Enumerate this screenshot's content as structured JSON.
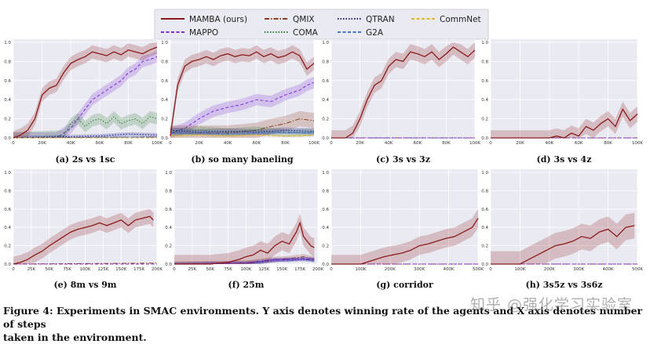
{
  "legend": [
    {
      "label": "MAMBA (ours)",
      "color": "#8b1a1a",
      "dash": "solid"
    },
    {
      "label": "QMIX",
      "color": "#8b3a1a",
      "dash": "dashdot"
    },
    {
      "label": "QTRAN",
      "color": "#1a1a8b",
      "dash": "dot"
    },
    {
      "label": "CommNet",
      "color": "#e3b52a",
      "dash": "dash"
    },
    {
      "label": "MAPPO",
      "color": "#7b2fd6",
      "dash": "dash"
    },
    {
      "label": "COMA",
      "color": "#2e7d32",
      "dash": "dot"
    },
    {
      "label": "G2A",
      "color": "#4a74c9",
      "dash": "dash"
    }
  ],
  "caption_line1": "Figure 4: Experiments in SMAC environments. Y axis denotes winning rate of the agents and X axis denotes number of steps",
  "caption_line2": "taken in the environment.",
  "watermark": "知乎 @强化学习实验室",
  "chart_data": [
    {
      "type": "line",
      "title": "(a) 2s vs 1sc",
      "ylim": [
        0,
        1.0
      ],
      "xticks": [
        "0",
        "20K",
        "40K",
        "60K",
        "80K",
        "100K"
      ],
      "xmax": 100,
      "yticks": [
        "0.0",
        "0.2",
        "0.4",
        "0.6",
        "0.8",
        "1.0"
      ],
      "series": [
        {
          "name": "MAMBA (ours)",
          "x": [
            0,
            5,
            10,
            15,
            20,
            25,
            30,
            35,
            40,
            45,
            50,
            55,
            60,
            65,
            70,
            75,
            80,
            85,
            90,
            95,
            100
          ],
          "y": [
            0,
            0.03,
            0.08,
            0.2,
            0.45,
            0.52,
            0.55,
            0.68,
            0.78,
            0.82,
            0.85,
            0.9,
            0.88,
            0.86,
            0.9,
            0.87,
            0.92,
            0.9,
            0.88,
            0.92,
            0.95
          ],
          "band": 0.07
        },
        {
          "name": "MAPPO",
          "x": [
            0,
            30,
            35,
            40,
            45,
            50,
            55,
            60,
            65,
            70,
            75,
            80,
            85,
            90,
            95,
            100
          ],
          "y": [
            0,
            0,
            0.05,
            0.1,
            0.2,
            0.3,
            0.4,
            0.45,
            0.5,
            0.55,
            0.6,
            0.68,
            0.72,
            0.8,
            0.82,
            0.85
          ],
          "band": 0.06
        },
        {
          "name": "COMA",
          "x": [
            0,
            35,
            40,
            45,
            50,
            55,
            60,
            65,
            70,
            75,
            80,
            85,
            90,
            95,
            100
          ],
          "y": [
            0,
            0.02,
            0.15,
            0.2,
            0.12,
            0.18,
            0.2,
            0.15,
            0.22,
            0.15,
            0.18,
            0.2,
            0.15,
            0.22,
            0.2
          ],
          "band": 0.06
        },
        {
          "name": "QMIX",
          "x": [
            0,
            100
          ],
          "y": [
            0,
            0.01
          ],
          "band": 0.005
        },
        {
          "name": "QTRAN",
          "x": [
            0,
            60,
            80,
            100
          ],
          "y": [
            0,
            0.02,
            0.04,
            0.03
          ],
          "band": 0.02
        },
        {
          "name": "G2A",
          "x": [
            0,
            100
          ],
          "y": [
            0,
            0.01
          ],
          "band": 0.005
        },
        {
          "name": "CommNet",
          "x": [
            0,
            100
          ],
          "y": [
            0,
            0
          ],
          "band": 0
        }
      ]
    },
    {
      "type": "line",
      "title": "(b) so many baneling",
      "ylim": [
        0,
        1.0
      ],
      "xticks": [
        "0",
        "20K",
        "40K",
        "60K",
        "80K",
        "100K"
      ],
      "xmax": 100,
      "yticks": [
        "0.0",
        "0.2",
        "0.4",
        "0.6",
        "0.8",
        "1.0"
      ],
      "series": [
        {
          "name": "MAMBA (ours)",
          "x": [
            0,
            5,
            10,
            15,
            20,
            25,
            30,
            35,
            40,
            45,
            50,
            55,
            60,
            65,
            70,
            75,
            80,
            85,
            90,
            95,
            100
          ],
          "y": [
            0.02,
            0.55,
            0.75,
            0.8,
            0.82,
            0.85,
            0.82,
            0.86,
            0.88,
            0.85,
            0.87,
            0.86,
            0.9,
            0.85,
            0.88,
            0.84,
            0.86,
            0.9,
            0.86,
            0.72,
            0.78
          ],
          "band": 0.07
        },
        {
          "name": "MAPPO",
          "x": [
            0,
            10,
            20,
            30,
            40,
            50,
            60,
            70,
            80,
            90,
            95,
            100
          ],
          "y": [
            0.05,
            0.1,
            0.2,
            0.28,
            0.32,
            0.35,
            0.4,
            0.38,
            0.45,
            0.5,
            0.55,
            0.58
          ],
          "band": 0.06
        },
        {
          "name": "QMIX",
          "x": [
            0,
            20,
            40,
            60,
            70,
            80,
            90,
            100
          ],
          "y": [
            0.05,
            0.05,
            0.05,
            0.08,
            0.12,
            0.15,
            0.2,
            0.18
          ],
          "band": 0.08
        },
        {
          "name": "COMA",
          "x": [
            0,
            20,
            40,
            60,
            80,
            100
          ],
          "y": [
            0.06,
            0.08,
            0.06,
            0.08,
            0.05,
            0.06
          ],
          "band": 0.04
        },
        {
          "name": "QTRAN",
          "x": [
            0,
            20,
            40,
            60,
            80,
            100
          ],
          "y": [
            0.08,
            0.06,
            0.07,
            0.06,
            0.08,
            0.07
          ],
          "band": 0.03
        },
        {
          "name": "G2A",
          "x": [
            0,
            20,
            40,
            60,
            80,
            100
          ],
          "y": [
            0.05,
            0.05,
            0.04,
            0.05,
            0.06,
            0.05
          ],
          "band": 0.02
        },
        {
          "name": "CommNet",
          "x": [
            0,
            20,
            40,
            60,
            80,
            100
          ],
          "y": [
            0.02,
            0.03,
            0.02,
            0.03,
            0.02,
            0.03
          ],
          "band": 0.01
        }
      ]
    },
    {
      "type": "line",
      "title": "(c) 3s vs 3z",
      "ylim": [
        0,
        1.0
      ],
      "xticks": [
        "0",
        "20K",
        "40K",
        "60K",
        "80K",
        "100K"
      ],
      "xmax": 100,
      "yticks": [
        "0.0",
        "0.2",
        "0.4",
        "0.6",
        "0.8",
        "1.0"
      ],
      "series": [
        {
          "name": "MAMBA (ours)",
          "x": [
            0,
            10,
            15,
            20,
            25,
            30,
            35,
            40,
            45,
            50,
            55,
            60,
            65,
            70,
            75,
            80,
            85,
            90,
            95,
            100
          ],
          "y": [
            0,
            0,
            0.05,
            0.2,
            0.4,
            0.55,
            0.6,
            0.75,
            0.82,
            0.8,
            0.9,
            0.88,
            0.85,
            0.9,
            0.82,
            0.88,
            0.95,
            0.9,
            0.85,
            0.92
          ],
          "band": 0.08
        },
        {
          "name": "QMIX",
          "x": [
            0,
            100
          ],
          "y": [
            0,
            0
          ],
          "band": 0
        },
        {
          "name": "QTRAN",
          "x": [
            0,
            100
          ],
          "y": [
            0,
            0
          ],
          "band": 0
        },
        {
          "name": "MAPPO",
          "x": [
            0,
            100
          ],
          "y": [
            0,
            0
          ],
          "band": 0
        }
      ]
    },
    {
      "type": "line",
      "title": "(d) 3s vs 4z",
      "ylim": [
        0,
        1.0
      ],
      "xticks": [
        "0",
        "20K",
        "40K",
        "60K",
        "80K",
        "100K"
      ],
      "xmax": 100,
      "yticks": [
        "0.0",
        "0.2",
        "0.4",
        "0.6",
        "0.8",
        "1.0"
      ],
      "series": [
        {
          "name": "MAMBA (ours)",
          "x": [
            0,
            30,
            40,
            45,
            50,
            55,
            60,
            65,
            70,
            75,
            80,
            85,
            90,
            95,
            100
          ],
          "y": [
            0,
            0,
            0,
            0.02,
            0.0,
            0.05,
            0.02,
            0.12,
            0.08,
            0.15,
            0.2,
            0.12,
            0.3,
            0.18,
            0.25
          ],
          "band": 0.08
        },
        {
          "name": "QMIX",
          "x": [
            0,
            100
          ],
          "y": [
            0,
            0
          ],
          "band": 0
        },
        {
          "name": "MAPPO",
          "x": [
            0,
            100
          ],
          "y": [
            0,
            0
          ],
          "band": 0
        }
      ]
    },
    {
      "type": "line",
      "title": "(e) 8m vs 9m",
      "ylim": [
        0,
        1.0
      ],
      "xticks": [
        "0",
        "25K",
        "50K",
        "75K",
        "100K",
        "125K",
        "150K",
        "175K",
        "200K"
      ],
      "xmax": 200,
      "yticks": [
        "0.0",
        "0.2",
        "0.4",
        "0.6",
        "0.8",
        "1.0"
      ],
      "series": [
        {
          "name": "MAMBA (ours)",
          "x": [
            0,
            10,
            20,
            30,
            40,
            50,
            60,
            70,
            80,
            90,
            100,
            110,
            120,
            130,
            140,
            150,
            160,
            170,
            180,
            190,
            195
          ],
          "y": [
            0,
            0.02,
            0.05,
            0.1,
            0.14,
            0.2,
            0.25,
            0.3,
            0.35,
            0.38,
            0.4,
            0.42,
            0.45,
            0.42,
            0.45,
            0.48,
            0.42,
            0.48,
            0.5,
            0.52,
            0.48
          ],
          "band": 0.08
        },
        {
          "name": "QMIX",
          "x": [
            0,
            200
          ],
          "y": [
            0,
            0.01
          ],
          "band": 0
        },
        {
          "name": "MAPPO",
          "x": [
            0,
            200
          ],
          "y": [
            0,
            0
          ],
          "band": 0
        }
      ]
    },
    {
      "type": "line",
      "title": "(f) 25m",
      "ylim": [
        0,
        1.0
      ],
      "xticks": [
        "0",
        "25K",
        "50K",
        "75K",
        "100K",
        "125K",
        "150K",
        "175K",
        "200K"
      ],
      "xmax": 200,
      "yticks": [
        "0.0",
        "0.2",
        "0.4",
        "0.6",
        "0.8",
        "1.0"
      ],
      "series": [
        {
          "name": "MAMBA (ours)",
          "x": [
            0,
            50,
            75,
            90,
            100,
            110,
            120,
            130,
            140,
            150,
            160,
            170,
            175,
            180,
            185,
            190,
            195
          ],
          "y": [
            0,
            0,
            0.02,
            0.05,
            0.08,
            0.1,
            0.15,
            0.12,
            0.2,
            0.25,
            0.22,
            0.35,
            0.45,
            0.3,
            0.25,
            0.2,
            0.18
          ],
          "band": 0.1
        },
        {
          "name": "QMIX",
          "x": [
            0,
            100,
            120,
            140,
            160,
            180,
            195
          ],
          "y": [
            0,
            0.01,
            0.03,
            0.05,
            0.06,
            0.08,
            0.05
          ],
          "band": 0.03
        },
        {
          "name": "G2A",
          "x": [
            0,
            100,
            120,
            140,
            160,
            180,
            195
          ],
          "y": [
            0,
            0.01,
            0.02,
            0.05,
            0.04,
            0.06,
            0.04
          ],
          "band": 0.02
        },
        {
          "name": "QTRAN",
          "x": [
            0,
            100,
            120,
            140,
            160,
            180,
            195
          ],
          "y": [
            0,
            0.01,
            0.02,
            0.04,
            0.05,
            0.05,
            0.04
          ],
          "band": 0.02
        },
        {
          "name": "MAPPO",
          "x": [
            0,
            100,
            130,
            160,
            195
          ],
          "y": [
            0,
            0.01,
            0.04,
            0.05,
            0.06
          ],
          "band": 0.02
        }
      ]
    },
    {
      "type": "line",
      "title": "(g) corridor",
      "ylim": [
        0,
        1.0
      ],
      "xticks": [
        "0",
        "100K",
        "200K",
        "300K",
        "400K",
        "500K"
      ],
      "xmax": 500,
      "yticks": [
        "0.0",
        "0.2",
        "0.4",
        "0.6",
        "0.8",
        "1.0"
      ],
      "series": [
        {
          "name": "MAMBA (ours)",
          "x": [
            0,
            100,
            120,
            150,
            180,
            210,
            240,
            270,
            300,
            330,
            360,
            390,
            420,
            450,
            480,
            500
          ],
          "y": [
            0,
            0,
            0.02,
            0.05,
            0.08,
            0.1,
            0.12,
            0.15,
            0.2,
            0.22,
            0.25,
            0.28,
            0.3,
            0.35,
            0.4,
            0.5
          ],
          "band": 0.1
        },
        {
          "name": "QMIX",
          "x": [
            0,
            500
          ],
          "y": [
            0,
            0
          ],
          "band": 0
        },
        {
          "name": "MAPPO",
          "x": [
            0,
            500
          ],
          "y": [
            0,
            0
          ],
          "band": 0
        }
      ]
    },
    {
      "type": "line",
      "title": "(h) 3s5z vs 3s6z",
      "ylim": [
        0,
        1.0
      ],
      "xticks": [
        "0",
        "100K",
        "200K",
        "300K",
        "400K",
        "500K"
      ],
      "xmax": 500,
      "yticks": [
        "0.0",
        "0.2",
        "0.4",
        "0.6",
        "0.8",
        "1.0"
      ],
      "series": [
        {
          "name": "MAMBA (ours)",
          "x": [
            0,
            100,
            130,
            160,
            190,
            220,
            250,
            280,
            310,
            340,
            370,
            400,
            430,
            460,
            490
          ],
          "y": [
            0,
            0,
            0.05,
            0.1,
            0.15,
            0.2,
            0.22,
            0.25,
            0.3,
            0.28,
            0.35,
            0.38,
            0.3,
            0.4,
            0.42
          ],
          "band": 0.14
        },
        {
          "name": "QMIX",
          "x": [
            0,
            500
          ],
          "y": [
            0,
            0
          ],
          "band": 0
        },
        {
          "name": "MAPPO",
          "x": [
            0,
            500
          ],
          "y": [
            0,
            0
          ],
          "band": 0
        }
      ]
    }
  ]
}
